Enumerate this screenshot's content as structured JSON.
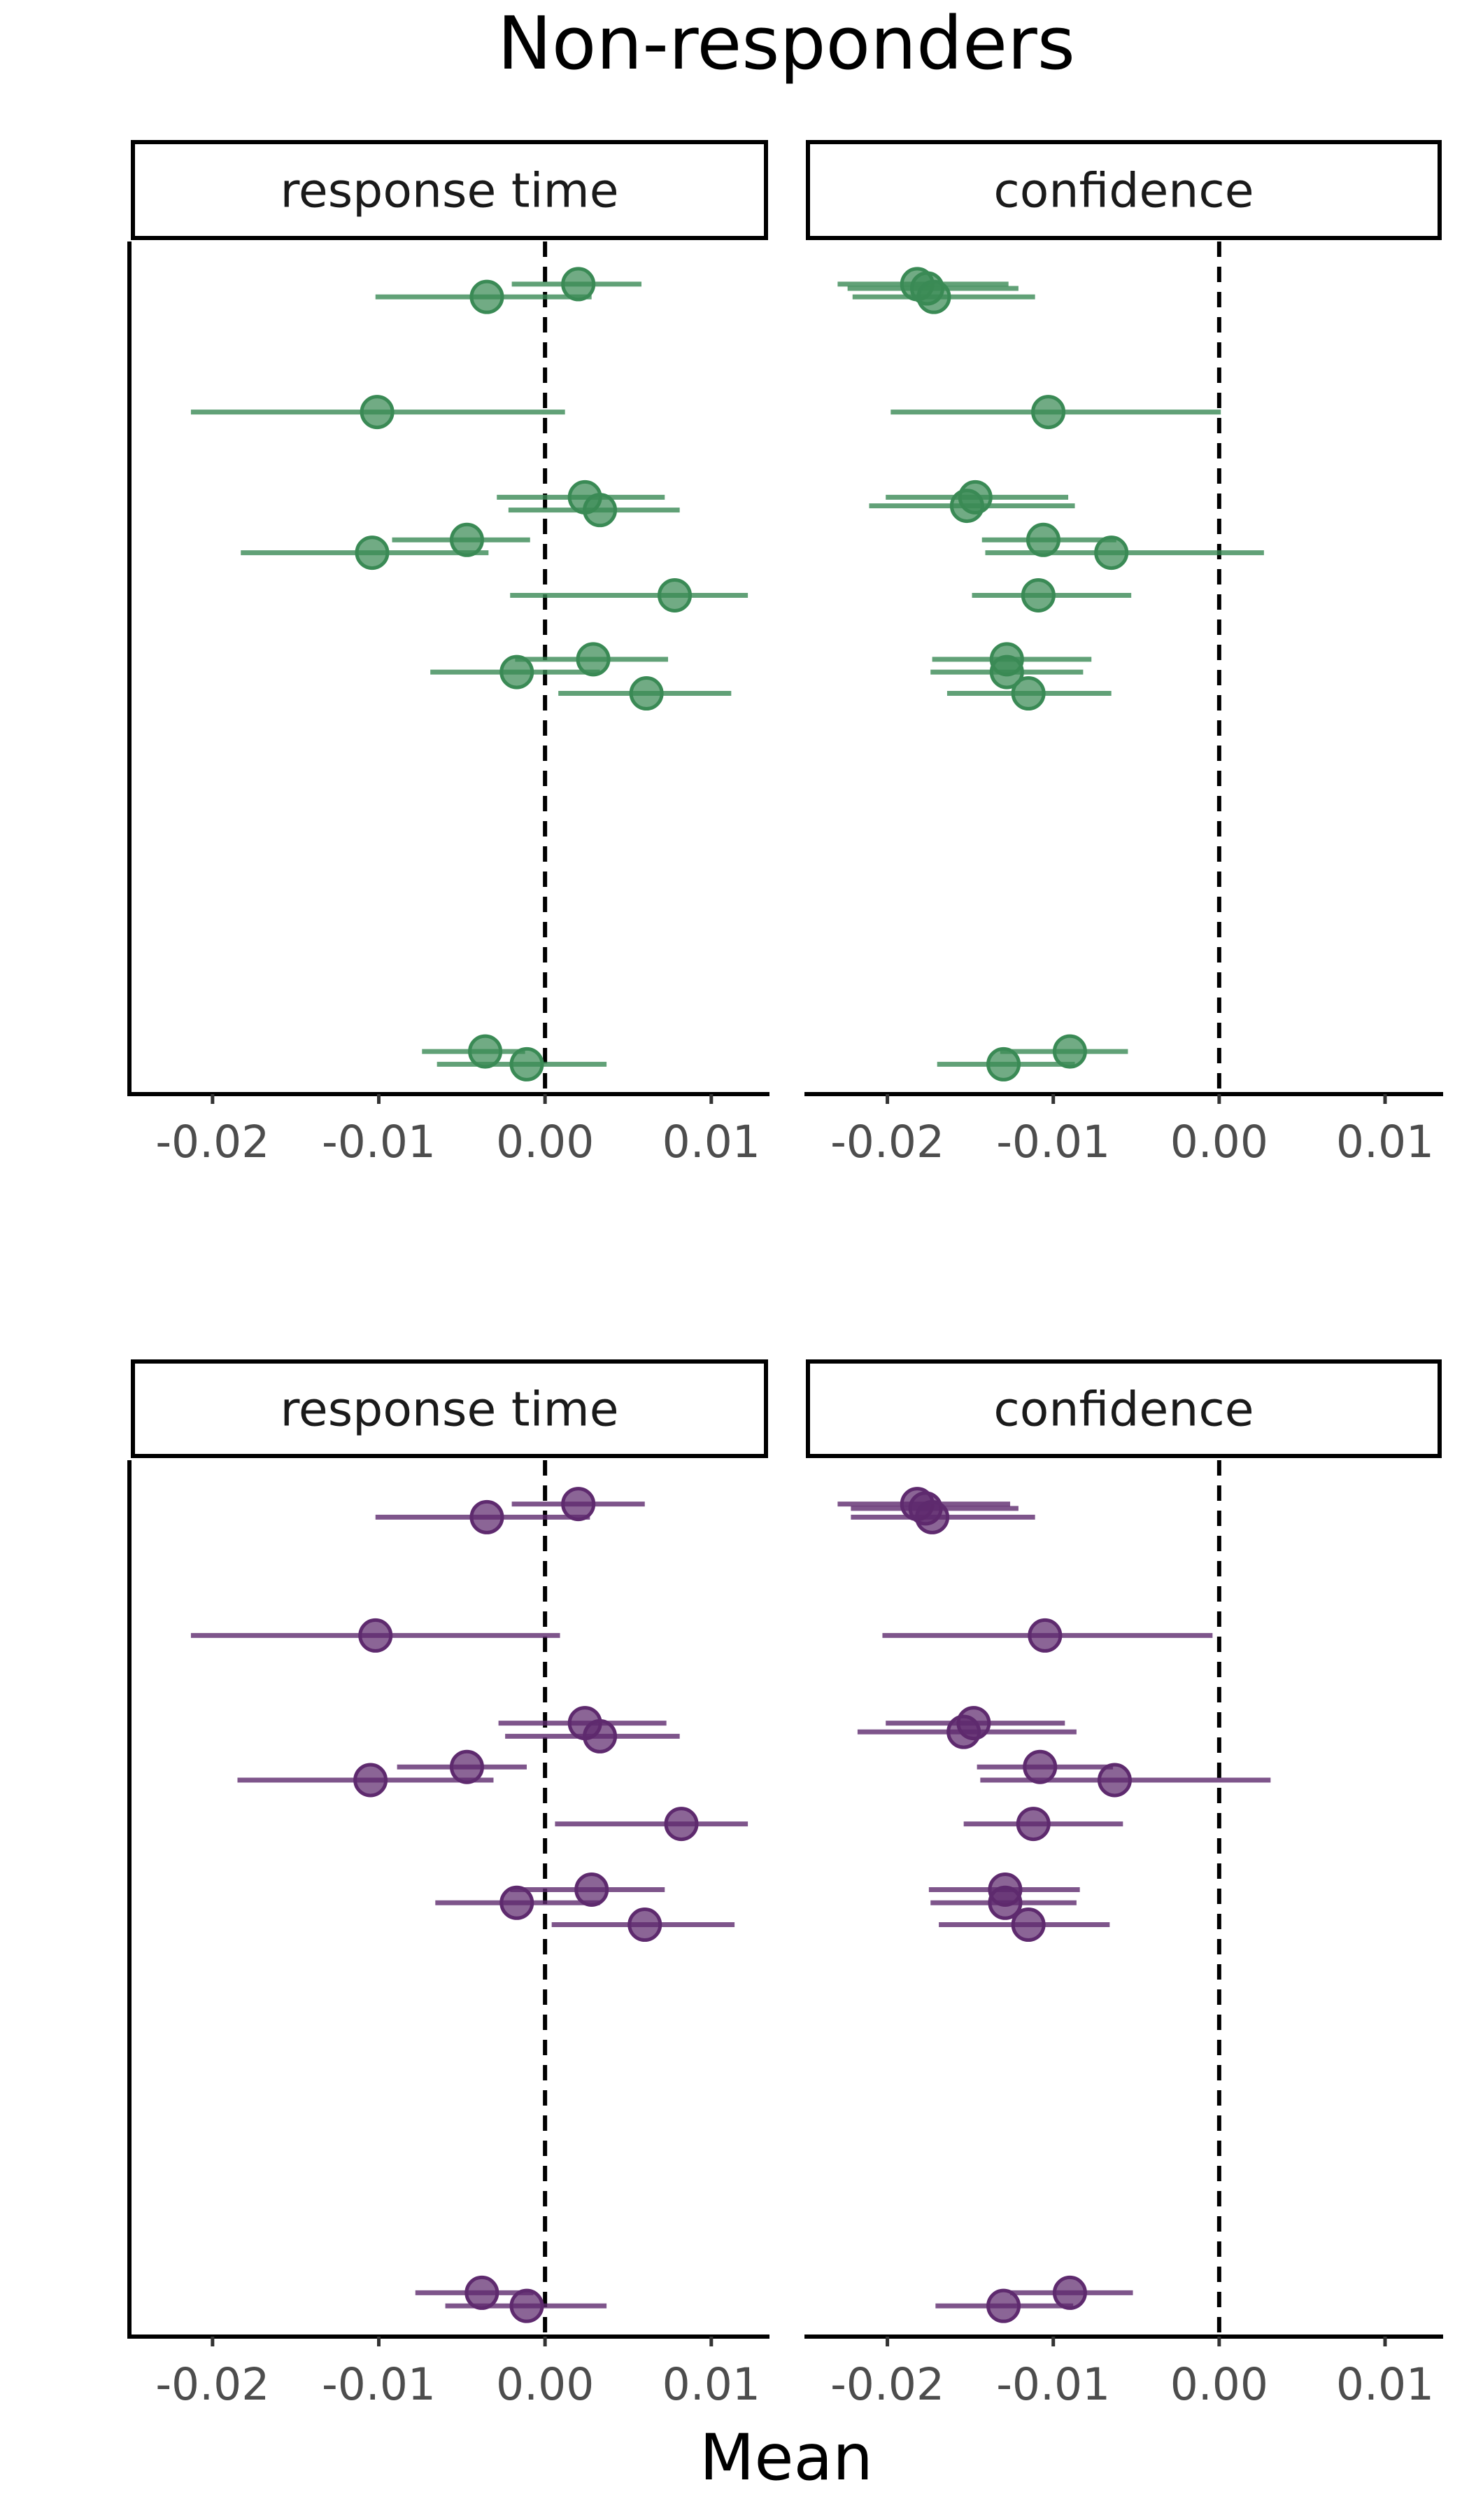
{
  "chart_data": {
    "type": "scatter",
    "title": "Non-responders",
    "xlabel": "Mean",
    "xlim": [
      -0.025,
      0.0135
    ],
    "xticks": [
      -0.02,
      -0.01,
      0.0,
      0.01
    ],
    "xtick_labels": [
      "-0.02",
      "-0.01",
      "0.00",
      "0.01"
    ],
    "reference_line_x": 0,
    "grid": false,
    "panels": [
      {
        "row": 0,
        "col": 0,
        "strip": "response time",
        "color": "#3a8a55",
        "points": [
          {
            "y": 1.0,
            "x": 0.002,
            "lo": -0.002,
            "hi": 0.0058
          },
          {
            "y": 1.3,
            "x": -0.0035,
            "lo": -0.0102,
            "hi": 0.0028
          },
          {
            "y": 4.0,
            "x": -0.0101,
            "lo": -0.0213,
            "hi": 0.0012
          },
          {
            "y": 6.0,
            "x": 0.0024,
            "lo": -0.0029,
            "hi": 0.0072
          },
          {
            "y": 6.3,
            "x": 0.0033,
            "lo": -0.0022,
            "hi": 0.0081
          },
          {
            "y": 7.0,
            "x": -0.0047,
            "lo": -0.0092,
            "hi": -0.0009
          },
          {
            "y": 7.3,
            "x": -0.0104,
            "lo": -0.0183,
            "hi": -0.0034
          },
          {
            "y": 8.3,
            "x": 0.0078,
            "lo": -0.0021,
            "hi": 0.0122
          },
          {
            "y": 9.8,
            "x": 0.0029,
            "lo": -0.0018,
            "hi": 0.0074
          },
          {
            "y": 10.1,
            "x": -0.0017,
            "lo": -0.0069,
            "hi": 0.0033
          },
          {
            "y": 10.6,
            "x": 0.0061,
            "lo": 0.0008,
            "hi": 0.0112
          },
          {
            "y": 19.0,
            "x": -0.0036,
            "lo": -0.0074,
            "hi": -0.0012
          },
          {
            "y": 19.3,
            "x": -0.0011,
            "lo": -0.0065,
            "hi": 0.0037
          }
        ]
      },
      {
        "row": 0,
        "col": 1,
        "strip": "confidence",
        "color": "#3a8a55",
        "points": [
          {
            "y": 1.0,
            "x": -0.0182,
            "lo": -0.023,
            "hi": -0.0127
          },
          {
            "y": 1.1,
            "x": -0.0176,
            "lo": -0.0224,
            "hi": -0.0121
          },
          {
            "y": 1.3,
            "x": -0.0172,
            "lo": -0.0221,
            "hi": -0.0111
          },
          {
            "y": 4.0,
            "x": -0.0103,
            "lo": -0.0198,
            "hi": 0.0001
          },
          {
            "y": 6.0,
            "x": -0.0147,
            "lo": -0.0201,
            "hi": -0.0091
          },
          {
            "y": 6.2,
            "x": -0.0152,
            "lo": -0.0211,
            "hi": -0.0087
          },
          {
            "y": 7.0,
            "x": -0.0106,
            "lo": -0.0143,
            "hi": -0.0062
          },
          {
            "y": 7.3,
            "x": -0.0065,
            "lo": -0.0141,
            "hi": 0.0027
          },
          {
            "y": 8.3,
            "x": -0.0109,
            "lo": -0.0149,
            "hi": -0.0053
          },
          {
            "y": 9.8,
            "x": -0.0128,
            "lo": -0.0173,
            "hi": -0.0077
          },
          {
            "y": 10.1,
            "x": -0.0128,
            "lo": -0.0174,
            "hi": -0.0082
          },
          {
            "y": 10.6,
            "x": -0.0115,
            "lo": -0.0164,
            "hi": -0.0065
          },
          {
            "y": 19.0,
            "x": -0.009,
            "lo": -0.0132,
            "hi": -0.0055
          },
          {
            "y": 19.3,
            "x": -0.013,
            "lo": -0.017,
            "hi": -0.0087
          }
        ]
      },
      {
        "row": 1,
        "col": 0,
        "strip": "response time",
        "color": "#5e2a6e",
        "points": [
          {
            "y": 1.0,
            "x": 0.002,
            "lo": -0.002,
            "hi": 0.006
          },
          {
            "y": 1.3,
            "x": -0.0035,
            "lo": -0.0102,
            "hi": 0.0027
          },
          {
            "y": 4.0,
            "x": -0.0102,
            "lo": -0.0213,
            "hi": 0.0009
          },
          {
            "y": 6.0,
            "x": 0.0024,
            "lo": -0.0028,
            "hi": 0.0073
          },
          {
            "y": 6.3,
            "x": 0.0033,
            "lo": -0.0024,
            "hi": 0.0081
          },
          {
            "y": 7.0,
            "x": -0.0047,
            "lo": -0.0089,
            "hi": -0.0011
          },
          {
            "y": 7.3,
            "x": -0.0105,
            "lo": -0.0185,
            "hi": -0.0031
          },
          {
            "y": 8.3,
            "x": 0.0082,
            "lo": 0.0006,
            "hi": 0.0122
          },
          {
            "y": 9.8,
            "x": 0.0028,
            "lo": -0.0021,
            "hi": 0.0072
          },
          {
            "y": 10.1,
            "x": -0.0017,
            "lo": -0.0066,
            "hi": 0.0033
          },
          {
            "y": 10.6,
            "x": 0.006,
            "lo": 0.0004,
            "hi": 0.0114
          },
          {
            "y": 19.0,
            "x": -0.0038,
            "lo": -0.0078,
            "hi": -0.0007
          },
          {
            "y": 19.3,
            "x": -0.0011,
            "lo": -0.006,
            "hi": 0.0037
          }
        ]
      },
      {
        "row": 1,
        "col": 1,
        "strip": "confidence",
        "color": "#5e2a6e",
        "points": [
          {
            "y": 1.0,
            "x": -0.0182,
            "lo": -0.023,
            "hi": -0.0126
          },
          {
            "y": 1.1,
            "x": -0.0177,
            "lo": -0.0222,
            "hi": -0.0121
          },
          {
            "y": 1.3,
            "x": -0.0173,
            "lo": -0.0222,
            "hi": -0.0111
          },
          {
            "y": 4.0,
            "x": -0.0105,
            "lo": -0.0203,
            "hi": -0.0004
          },
          {
            "y": 6.0,
            "x": -0.0148,
            "lo": -0.0201,
            "hi": -0.0093
          },
          {
            "y": 6.2,
            "x": -0.0154,
            "lo": -0.0218,
            "hi": -0.0086
          },
          {
            "y": 7.0,
            "x": -0.0108,
            "lo": -0.0146,
            "hi": -0.0064
          },
          {
            "y": 7.3,
            "x": -0.0063,
            "lo": -0.0144,
            "hi": 0.0031
          },
          {
            "y": 8.3,
            "x": -0.0112,
            "lo": -0.0154,
            "hi": -0.0058
          },
          {
            "y": 9.8,
            "x": -0.0129,
            "lo": -0.0175,
            "hi": -0.0084
          },
          {
            "y": 10.1,
            "x": -0.0129,
            "lo": -0.0174,
            "hi": -0.0086
          },
          {
            "y": 10.6,
            "x": -0.0115,
            "lo": -0.0169,
            "hi": -0.0066
          },
          {
            "y": 19.0,
            "x": -0.009,
            "lo": -0.0126,
            "hi": -0.0052
          },
          {
            "y": 19.3,
            "x": -0.013,
            "lo": -0.0171,
            "hi": -0.0088
          }
        ]
      }
    ]
  }
}
